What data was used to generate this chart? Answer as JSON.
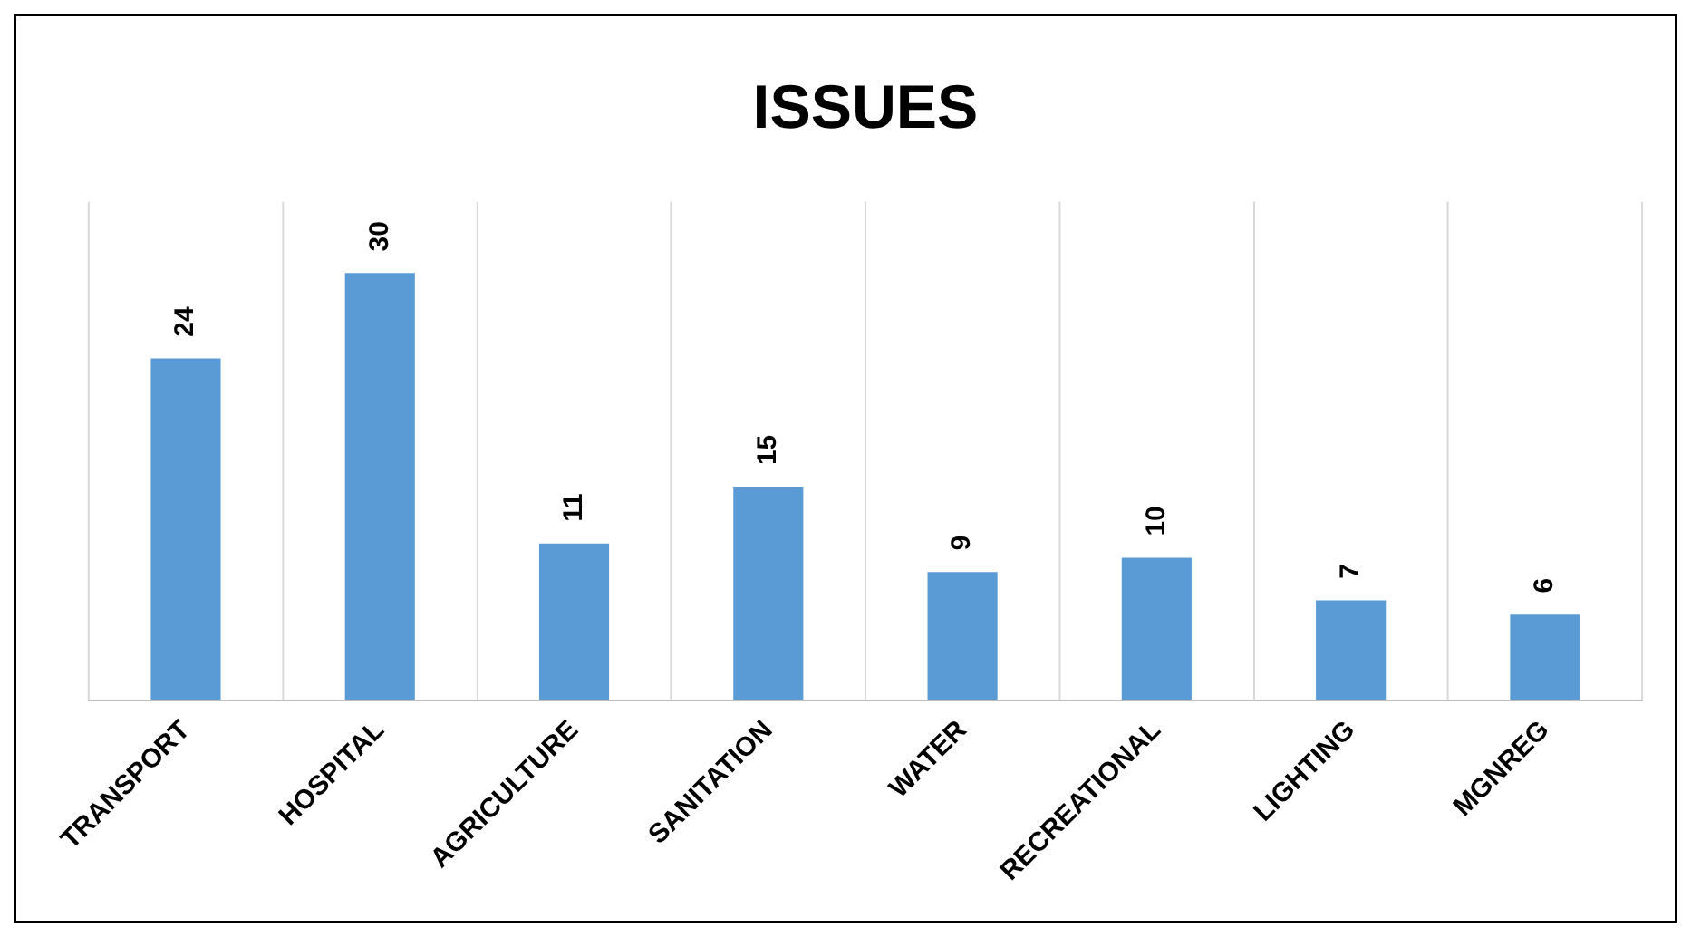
{
  "chart_data": {
    "type": "bar",
    "title": "ISSUES",
    "categories": [
      "TRANSPORT",
      "HOSPITAL",
      "AGRICULTURE",
      "SANITATION",
      "WATER",
      "RECREATIONAL",
      "LIGHTING",
      "MGNREG"
    ],
    "values": [
      24,
      30,
      11,
      15,
      9,
      10,
      7,
      6
    ],
    "color": "#5b9bd5",
    "data_labels": true,
    "grid": "x",
    "legend": false
  }
}
